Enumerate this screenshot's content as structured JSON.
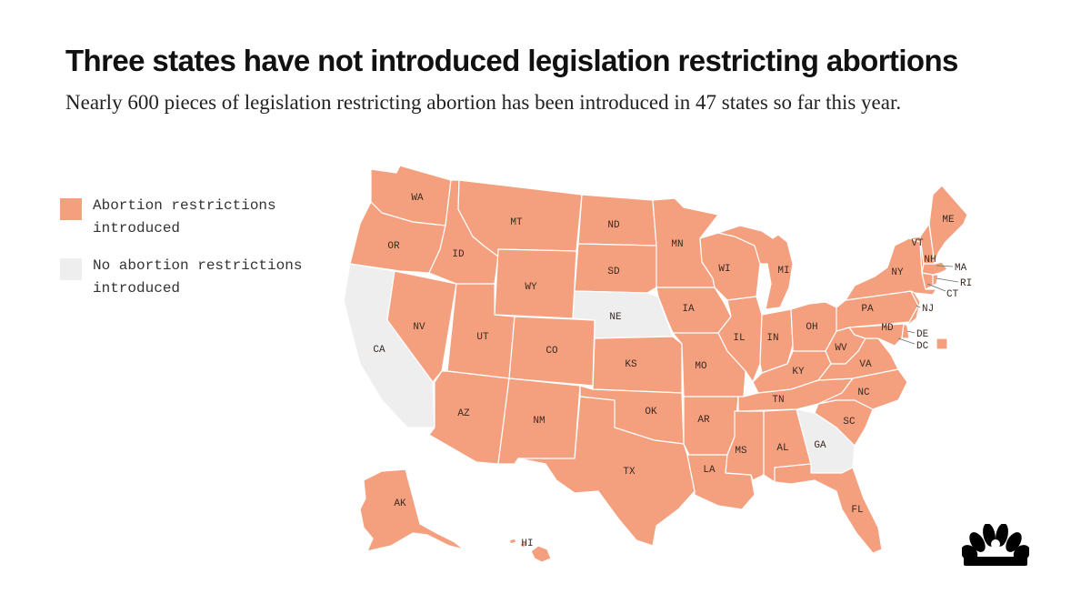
{
  "header": {
    "title": "Three states have not introduced legislation restricting abortions",
    "subtitle": "Nearly 600 pieces of legislation restricting abortion has been introduced in 47 states so far this year."
  },
  "legend": {
    "restricted": {
      "label": "Abortion restrictions introduced",
      "color": "#F4A07F"
    },
    "none": {
      "label": "No abortion restrictions introduced",
      "color": "#EEEEEE"
    }
  },
  "map": {
    "no_restriction_states": [
      "CA",
      "NE",
      "GA"
    ],
    "state_labels": {
      "WA": "WA",
      "OR": "OR",
      "CA": "CA",
      "NV": "NV",
      "ID": "ID",
      "MT": "MT",
      "WY": "WY",
      "UT": "UT",
      "CO": "CO",
      "AZ": "AZ",
      "NM": "NM",
      "ND": "ND",
      "SD": "SD",
      "NE": "NE",
      "KS": "KS",
      "OK": "OK",
      "TX": "TX",
      "MN": "MN",
      "IA": "IA",
      "MO": "MO",
      "AR": "AR",
      "LA": "LA",
      "WI": "WI",
      "IL": "IL",
      "MS": "MS",
      "MI": "MI",
      "IN": "IN",
      "KY": "KY",
      "TN": "TN",
      "AL": "AL",
      "OH": "OH",
      "WV": "WV",
      "VA": "VA",
      "NC": "NC",
      "SC": "SC",
      "GA": "GA",
      "FL": "FL",
      "PA": "PA",
      "NY": "NY",
      "VT": "VT",
      "NH": "NH",
      "ME": "ME",
      "MA": "MA",
      "RI": "RI",
      "CT": "CT",
      "NJ": "NJ",
      "DE": "DE",
      "MD": "MD",
      "DC": "DC",
      "AK": "AK",
      "HI": "HI"
    }
  },
  "brand": {
    "logo": "nbc-peacock-icon"
  }
}
